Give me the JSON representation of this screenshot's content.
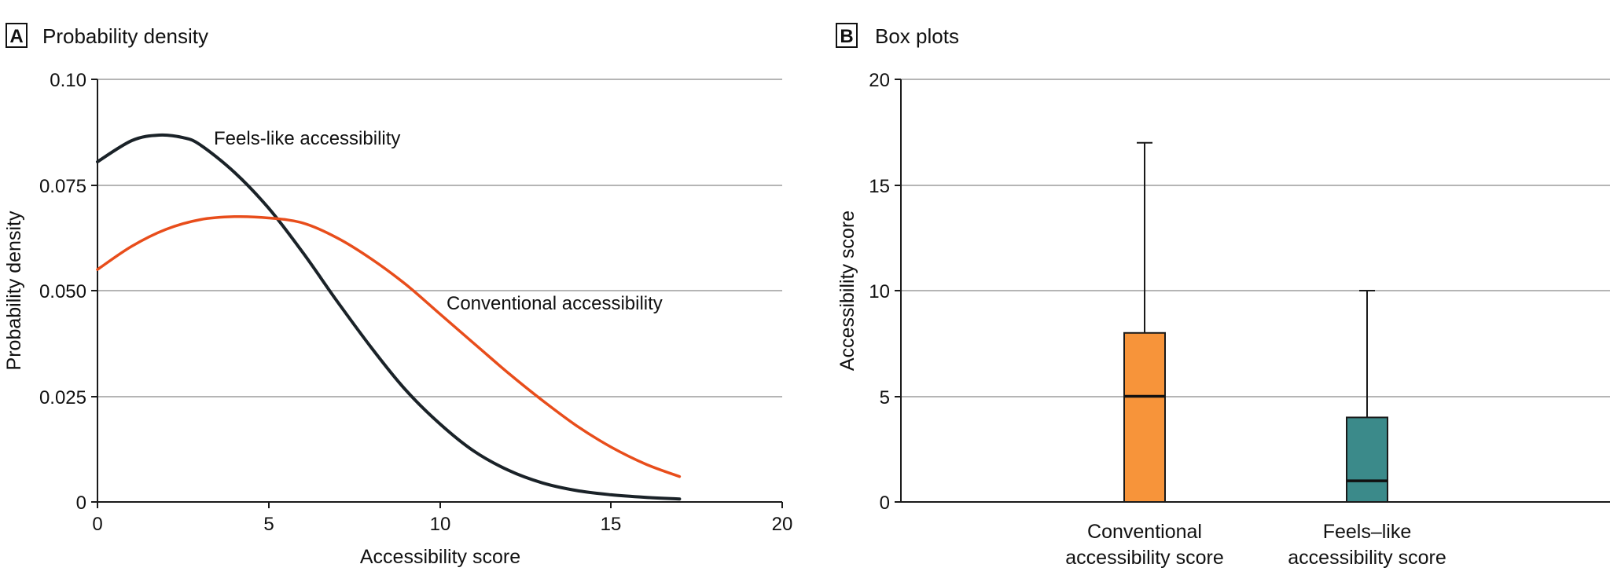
{
  "chart_data": [
    {
      "type": "line",
      "panel_letter": "A",
      "title": "Probability density",
      "xlabel": "Accessibility score",
      "ylabel": "Probability density",
      "xlim": [
        0,
        20
      ],
      "ylim": [
        0,
        0.1
      ],
      "x_ticks": [
        "0",
        "5",
        "10",
        "15",
        "20"
      ],
      "y_ticks": [
        "0",
        "0.025",
        "0.050",
        "0.075",
        "0.10"
      ],
      "grid": true,
      "series": [
        {
          "name": "Feels-like accessibility",
          "color": "#1a2228",
          "x": [
            0,
            1,
            1.8,
            2.5,
            3,
            4,
            5,
            6,
            7,
            8,
            9,
            10,
            11,
            12,
            13,
            14,
            15,
            16,
            17
          ],
          "values": [
            0.0805,
            0.0855,
            0.0868,
            0.0862,
            0.0845,
            0.078,
            0.0695,
            0.059,
            0.0475,
            0.0365,
            0.0265,
            0.0185,
            0.012,
            0.0075,
            0.0045,
            0.0027,
            0.0017,
            0.0011,
            0.0007
          ]
        },
        {
          "name": "Conventional accessibility",
          "color": "#e84d1b",
          "x": [
            0,
            1,
            2,
            3,
            4,
            5,
            6,
            7,
            8,
            9,
            10,
            11,
            12,
            13,
            14,
            15,
            16,
            17
          ],
          "values": [
            0.055,
            0.0605,
            0.0645,
            0.0668,
            0.0675,
            0.0672,
            0.066,
            0.0625,
            0.0575,
            0.0515,
            0.0445,
            0.0375,
            0.0305,
            0.024,
            0.018,
            0.013,
            0.009,
            0.006
          ]
        }
      ]
    },
    {
      "type": "box",
      "panel_letter": "B",
      "title": "Box plots",
      "ylabel": "Accessibility score",
      "ylim": [
        0,
        20
      ],
      "y_ticks": [
        "0",
        "5",
        "10",
        "15",
        "20"
      ],
      "grid": true,
      "boxes": [
        {
          "label_lines": [
            "Conventional",
            "accessibility score"
          ],
          "color": "#f7943a",
          "min": 0,
          "q1": 0,
          "median": 5,
          "q3": 8,
          "max": 17
        },
        {
          "label_lines": [
            "Feels–like",
            "accessibility score"
          ],
          "color": "#3b8a8a",
          "min": 0,
          "q1": 0,
          "median": 1,
          "q3": 4,
          "max": 10
        }
      ]
    }
  ]
}
